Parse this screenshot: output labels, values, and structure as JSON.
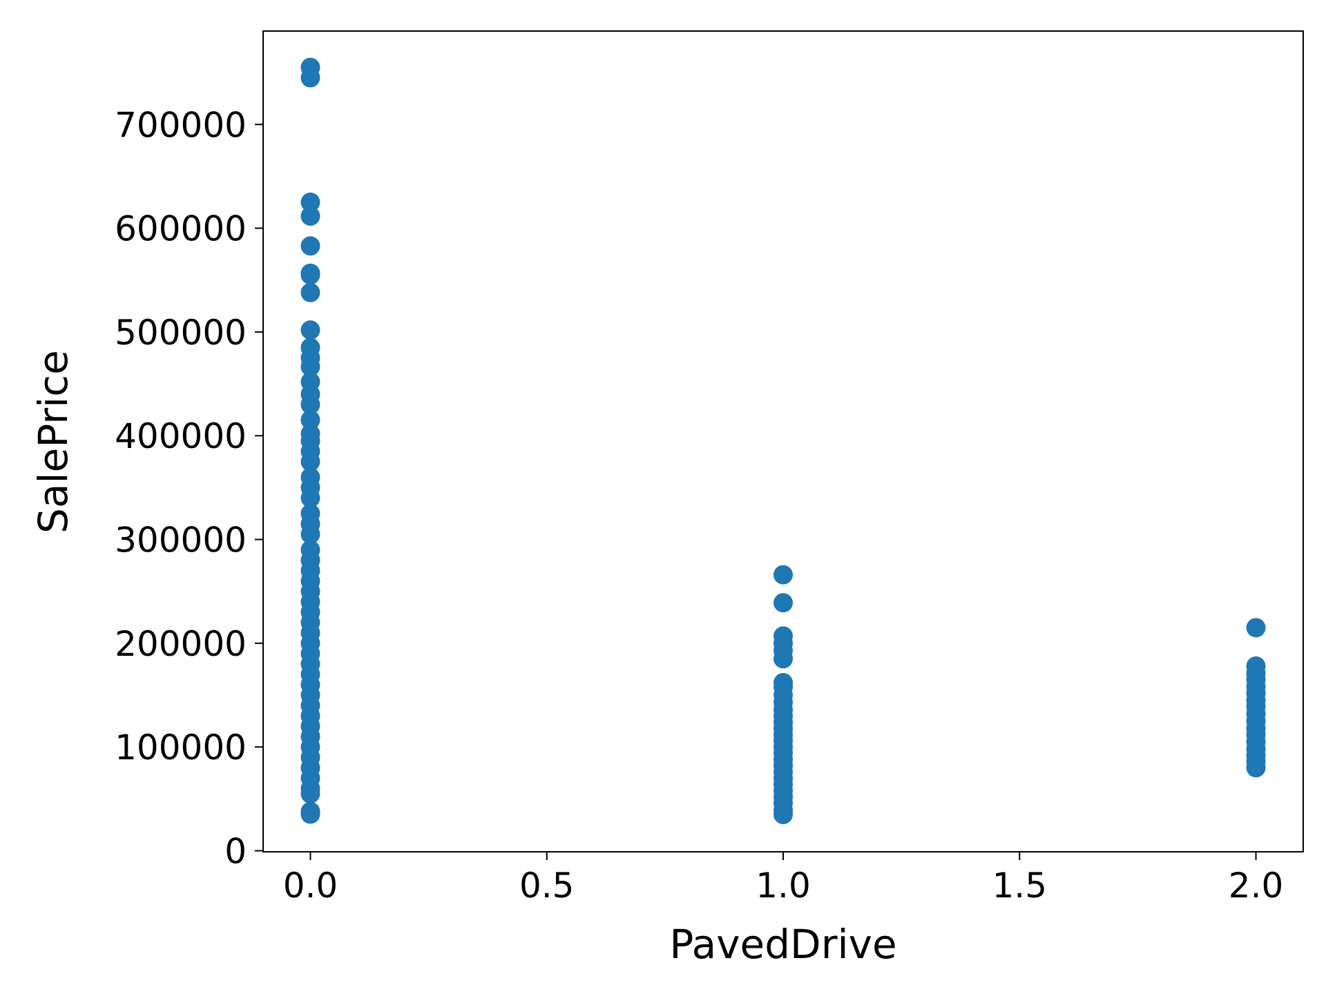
{
  "chart_data": {
    "type": "scatter",
    "title": "",
    "xlabel": "PavedDrive",
    "ylabel": "SalePrice",
    "xlim": [
      -0.1,
      2.1
    ],
    "ylim": [
      -1000,
      790000
    ],
    "xticks": [
      0.0,
      0.5,
      1.0,
      1.5,
      2.0
    ],
    "xtick_labels": [
      "0.0",
      "0.5",
      "1.0",
      "1.5",
      "2.0"
    ],
    "yticks": [
      0,
      100000,
      200000,
      300000,
      400000,
      500000,
      600000,
      700000
    ],
    "ytick_labels": [
      "0",
      "100000",
      "200000",
      "300000",
      "400000",
      "500000",
      "600000",
      "700000"
    ],
    "grid": false,
    "marker_color": "#1f77b4",
    "series": [
      {
        "points": [
          [
            0,
            755000
          ],
          [
            0,
            745000
          ],
          [
            0,
            625000
          ],
          [
            0,
            611657
          ],
          [
            0,
            582933
          ],
          [
            0,
            556581
          ],
          [
            0,
            555000
          ],
          [
            0,
            538000
          ],
          [
            0,
            501837
          ],
          [
            0,
            485000
          ],
          [
            0,
            475000
          ],
          [
            0,
            466500
          ],
          [
            0,
            451950
          ],
          [
            0,
            440000
          ],
          [
            0,
            430000
          ],
          [
            0,
            415298
          ],
          [
            0,
            402000
          ],
          [
            0,
            395000
          ],
          [
            0,
            385000
          ],
          [
            0,
            375000
          ],
          [
            0,
            360000
          ],
          [
            0,
            350000
          ],
          [
            0,
            340000
          ],
          [
            0,
            325000
          ],
          [
            0,
            315000
          ],
          [
            0,
            305000
          ],
          [
            0,
            290000
          ],
          [
            0,
            280000
          ],
          [
            0,
            270000
          ],
          [
            0,
            260000
          ],
          [
            0,
            250000
          ],
          [
            0,
            240000
          ],
          [
            0,
            230000
          ],
          [
            0,
            220000
          ],
          [
            0,
            210000
          ],
          [
            0,
            200000
          ],
          [
            0,
            190000
          ],
          [
            0,
            180000
          ],
          [
            0,
            170000
          ],
          [
            0,
            160000
          ],
          [
            0,
            150000
          ],
          [
            0,
            140000
          ],
          [
            0,
            130000
          ],
          [
            0,
            120000
          ],
          [
            0,
            110000
          ],
          [
            0,
            100000
          ],
          [
            0,
            90000
          ],
          [
            0,
            80000
          ],
          [
            0,
            70000
          ],
          [
            0,
            60000
          ],
          [
            0,
            55000
          ],
          [
            0,
            37900
          ],
          [
            0,
            35311
          ],
          [
            1,
            265979
          ],
          [
            1,
            239000
          ],
          [
            1,
            207000
          ],
          [
            1,
            200000
          ],
          [
            1,
            193000
          ],
          [
            1,
            185000
          ],
          [
            1,
            162000
          ],
          [
            1,
            158000
          ],
          [
            1,
            150000
          ],
          [
            1,
            143000
          ],
          [
            1,
            136000
          ],
          [
            1,
            130000
          ],
          [
            1,
            124000
          ],
          [
            1,
            118000
          ],
          [
            1,
            112000
          ],
          [
            1,
            106000
          ],
          [
            1,
            100000
          ],
          [
            1,
            94000
          ],
          [
            1,
            88000
          ],
          [
            1,
            82000
          ],
          [
            1,
            76000
          ],
          [
            1,
            70000
          ],
          [
            1,
            64000
          ],
          [
            1,
            58000
          ],
          [
            1,
            52000
          ],
          [
            1,
            46000
          ],
          [
            1,
            39300
          ],
          [
            1,
            34900
          ],
          [
            2,
            215000
          ],
          [
            2,
            178000
          ],
          [
            2,
            171000
          ],
          [
            2,
            165000
          ],
          [
            2,
            158000
          ],
          [
            2,
            152000
          ],
          [
            2,
            145000
          ],
          [
            2,
            139000
          ],
          [
            2,
            132000
          ],
          [
            2,
            125000
          ],
          [
            2,
            118000
          ],
          [
            2,
            112000
          ],
          [
            2,
            105000
          ],
          [
            2,
            98000
          ],
          [
            2,
            92000
          ],
          [
            2,
            86000
          ],
          [
            2,
            80000
          ]
        ]
      }
    ]
  }
}
